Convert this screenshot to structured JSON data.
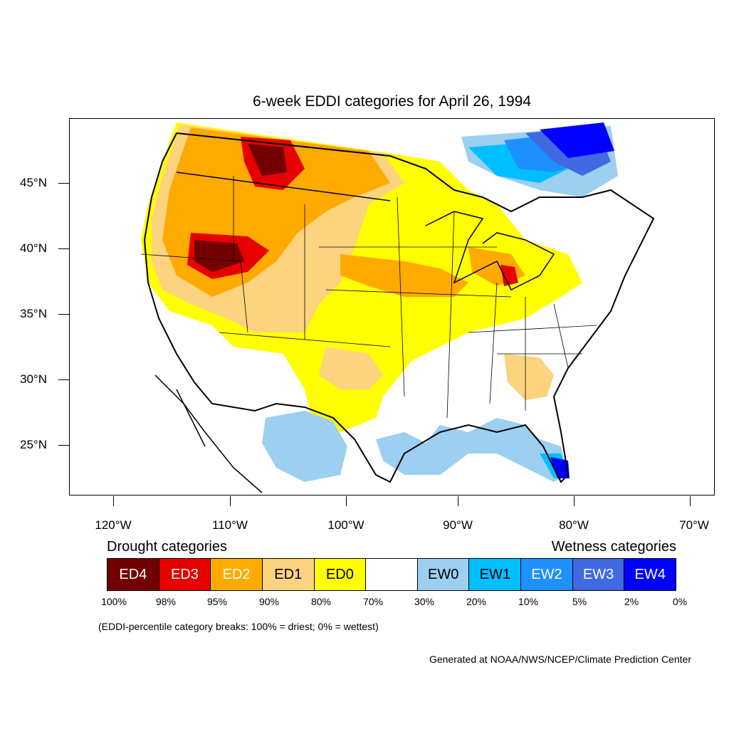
{
  "title": "6-week EDDI categories for April 26, 1994",
  "latitude_labels": [
    "45°N",
    "40°N",
    "35°N",
    "30°N",
    "25°N"
  ],
  "longitude_labels": [
    "120°W",
    "110°W",
    "100°W",
    "90°W",
    "80°W",
    "70°W"
  ],
  "legend": {
    "drought_heading": "Drought categories",
    "wetness_heading": "Wetness categories",
    "categories": [
      {
        "label": "ED4",
        "color": "#730000"
      },
      {
        "label": "ED3",
        "color": "#e60000"
      },
      {
        "label": "ED2",
        "color": "#ffaa00"
      },
      {
        "label": "ED1",
        "color": "#fcd37f"
      },
      {
        "label": "ED0",
        "color": "#ffff00"
      },
      {
        "label": "",
        "color": "#ffffff"
      },
      {
        "label": "EW0",
        "color": "#9ccff0"
      },
      {
        "label": "EW1",
        "color": "#00bfff"
      },
      {
        "label": "EW2",
        "color": "#1e90ff"
      },
      {
        "label": "EW3",
        "color": "#4169e1"
      },
      {
        "label": "EW4",
        "color": "#0000ff"
      }
    ],
    "breaks": [
      "100%",
      "98%",
      "95%",
      "90%",
      "80%",
      "70%",
      "30%",
      "20%",
      "10%",
      "5%",
      "2%",
      "0%"
    ]
  },
  "note": "(EDDI-percentile category breaks: 100% = driest; 0% = wettest)",
  "credit": "Generated at NOAA/NWS/NCEP/Climate Prediction Center"
}
